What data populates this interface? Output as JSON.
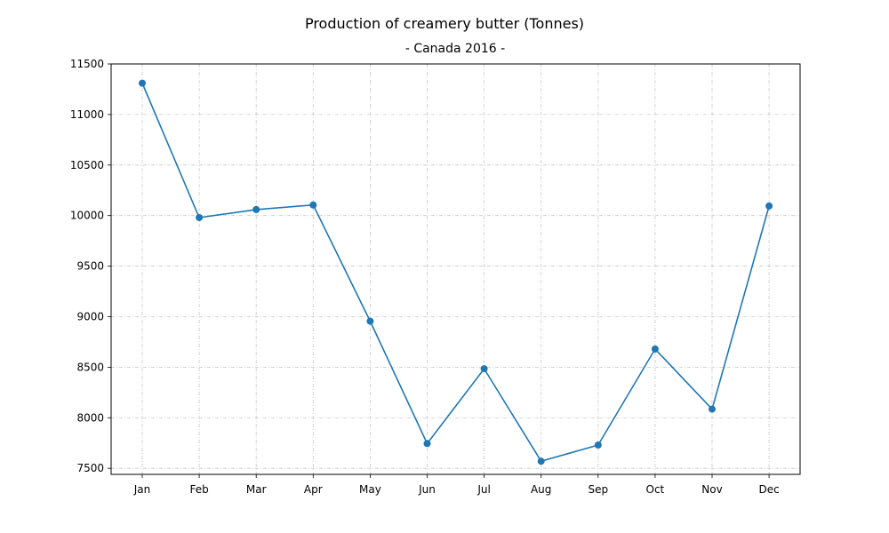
{
  "chart_data": {
    "type": "line",
    "title": "Production of creamery butter (Tonnes)",
    "subtitle": "- Canada 2016 -",
    "xlabel": "",
    "ylabel": "",
    "categories": [
      "Jan",
      "Feb",
      "Mar",
      "Apr",
      "May",
      "Jun",
      "Jul",
      "Aug",
      "Sep",
      "Oct",
      "Nov",
      "Dec"
    ],
    "series": [
      {
        "values": [
          11310,
          9980,
          10060,
          10105,
          8955,
          7745,
          8485,
          7570,
          7730,
          8680,
          8085,
          10095
        ],
        "color": "#1f77b4",
        "marker": "circle"
      }
    ],
    "ylim": [
      7440,
      11500
    ],
    "yticks": [
      7500,
      8000,
      8500,
      9000,
      9500,
      10000,
      10500,
      11000,
      11500
    ],
    "grid": true,
    "grid_style": "dash-dot",
    "grid_color": "#c8c8c8",
    "legend": "none"
  }
}
